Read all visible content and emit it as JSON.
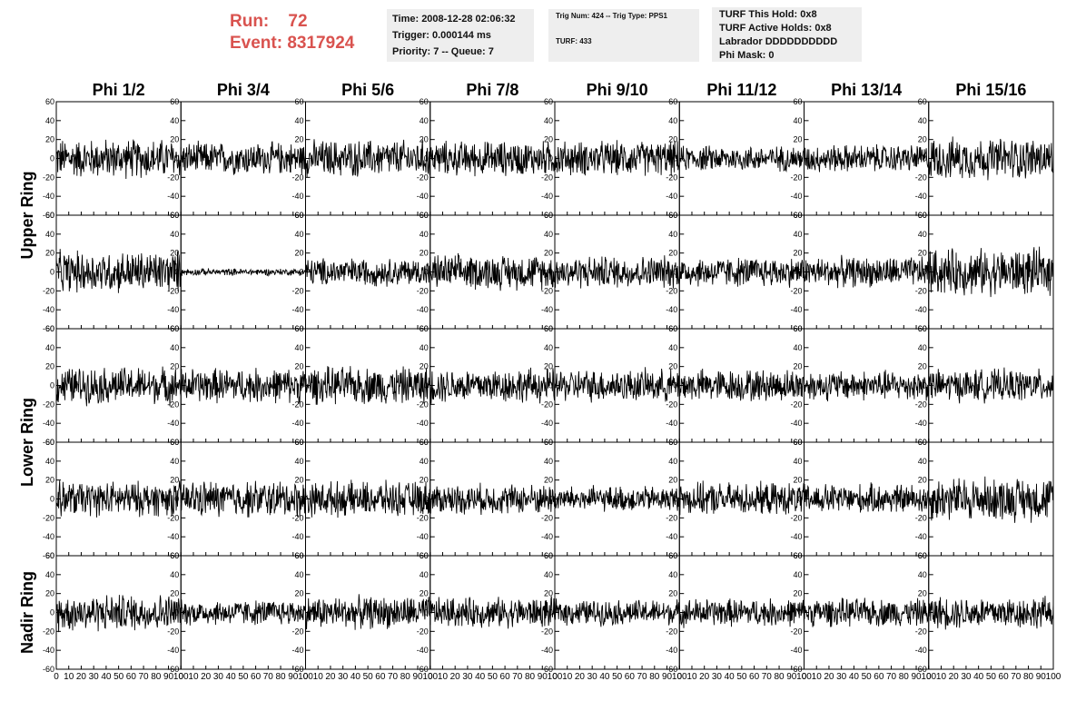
{
  "header": {
    "run_label": "Run:",
    "run_value": "72",
    "event_label": "Event:",
    "event_value": "8317924",
    "time": "Time: 2008-12-28 02:06:32",
    "trigger": "Trigger: 0.000144 ms",
    "priority": "Priority: 7 -- Queue: 7",
    "trig_num": "Trig Num: 424 -- Trig Type: PPS1",
    "turf": "TURF: 433",
    "turf_this_hold": "TURF This Hold: 0x8",
    "turf_active_holds": "TURF Active Holds: 0x8",
    "labrador": "Labrador DDDDDDDDDD",
    "phi_mask": "Phi Mask: 0"
  },
  "chart_data": {
    "type": "line",
    "columns": [
      "Phi 1/2",
      "Phi 3/4",
      "Phi 5/6",
      "Phi 7/8",
      "Phi 9/10",
      "Phi 11/12",
      "Phi 13/14",
      "Phi 15/16"
    ],
    "ring_groups": [
      "Upper Ring",
      "Lower Ring",
      "Nadir Ring"
    ],
    "rows": 5,
    "xlim": [
      0,
      100
    ],
    "ylim": [
      -60,
      60
    ],
    "x_ticks": [
      0,
      10,
      20,
      30,
      40,
      50,
      60,
      70,
      80,
      90,
      100
    ],
    "y_ticks": [
      -60,
      -40,
      -20,
      0,
      20,
      40,
      60
    ],
    "amplitudes": [
      [
        17,
        14,
        16,
        15,
        15,
        11,
        12,
        18
      ],
      [
        18,
        3,
        12,
        15,
        14,
        13,
        13,
        20
      ],
      [
        16,
        15,
        16,
        15,
        14,
        14,
        13,
        14
      ],
      [
        15,
        16,
        15,
        13,
        11,
        14,
        13,
        19
      ],
      [
        16,
        11,
        14,
        13,
        11,
        12,
        12,
        14
      ]
    ],
    "points_per_trace": 260
  }
}
